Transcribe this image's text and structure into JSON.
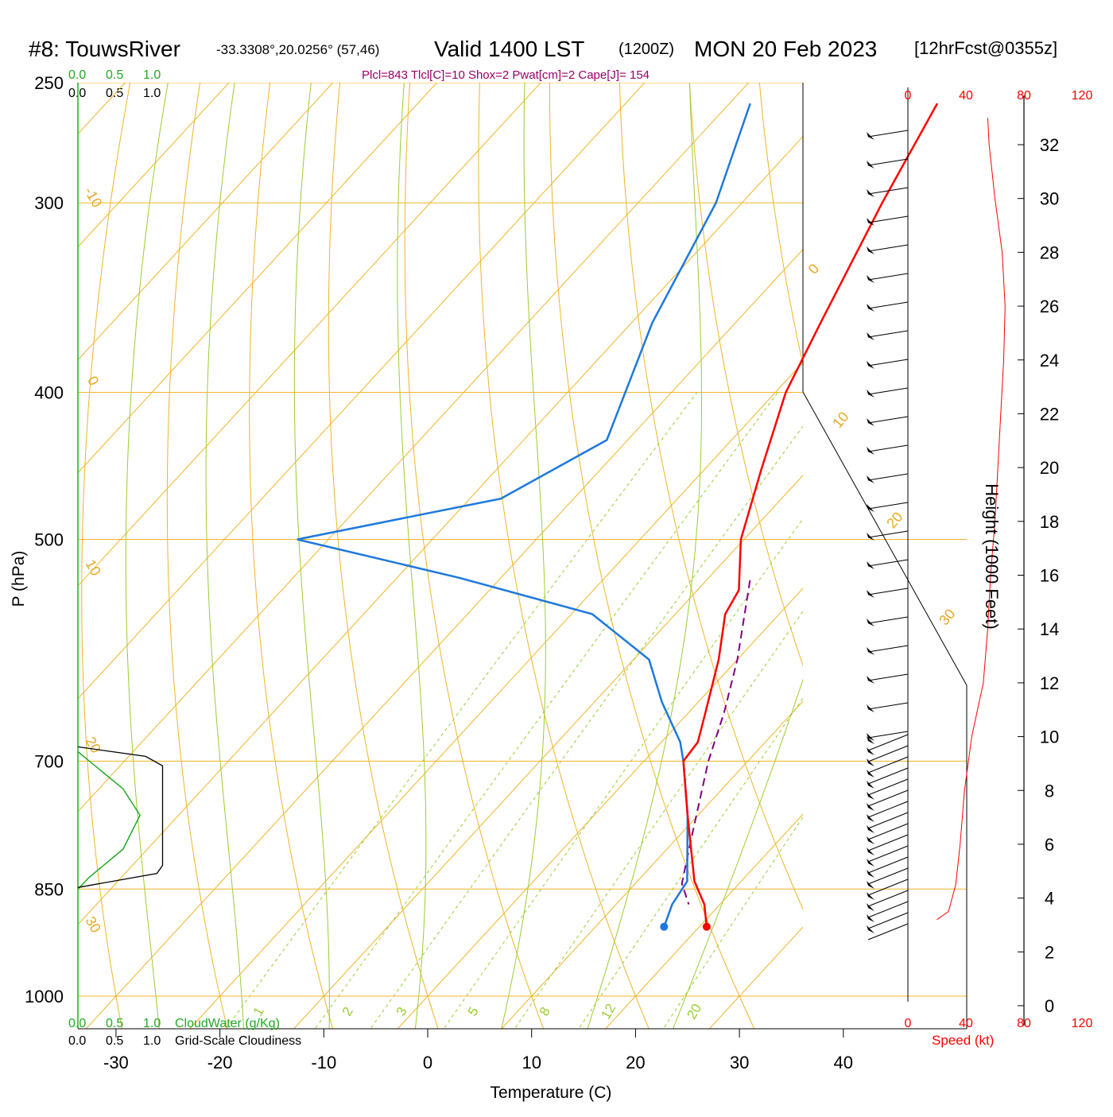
{
  "title": {
    "station": "#8: TouwsRiver",
    "coords": "-33.3308°,20.0256° (57,46)",
    "valid": "Valid 1400 LST",
    "zulu": "(1200Z)",
    "date": "MON 20 Feb 2023",
    "forecast": "[12hrFcst@0355z]"
  },
  "params_line": "Plcl=843 Tlcl[C]=10 Shox=2 Pwat[cm]=2 Cape[J]= 154",
  "top_scales": {
    "green": [
      "0.0",
      "0.5",
      "1.0"
    ],
    "black": [
      "0.0",
      "0.5",
      "1.0"
    ]
  },
  "bottom_scales": {
    "green": [
      "0.0",
      "0.5",
      "1.0"
    ],
    "green_label": "CloudWater (g/Kg)",
    "black": [
      "0.0",
      "0.5",
      "1.0"
    ],
    "black_label": "Grid-Scale Cloudiness"
  },
  "colors": {
    "temperature": "#ff0000",
    "dewpoint": "#1e78dc",
    "parcel": "#800080",
    "isotherm": "#f0b428",
    "dry_adiabat": "#f0b428",
    "moist_adiabat": "#9acd32",
    "mixing_ratio": "#9acd32",
    "cloudwater": "#22aa22",
    "cloudiness": "#000000",
    "wind_speed": "#ff0000"
  },
  "chart_data": {
    "type": "line",
    "diagram": "skew-T log-P",
    "x_label": "Temperature (C)",
    "y_label": "P (hPa)",
    "x_ticks": [
      -30,
      -20,
      -10,
      0,
      10,
      20,
      30,
      40
    ],
    "y_ticks": [
      250,
      300,
      400,
      500,
      700,
      850,
      1000
    ],
    "y_scale": "log",
    "temperature_profile": [
      {
        "p": 258,
        "t": -30.0
      },
      {
        "p": 300,
        "t": -26.5
      },
      {
        "p": 360,
        "t": -21.8
      },
      {
        "p": 400,
        "t": -19.0
      },
      {
        "p": 450,
        "t": -14.5
      },
      {
        "p": 500,
        "t": -10.3
      },
      {
        "p": 540,
        "t": -6.0
      },
      {
        "p": 560,
        "t": -5.2
      },
      {
        "p": 600,
        "t": -1.8
      },
      {
        "p": 650,
        "t": 1.6
      },
      {
        "p": 680,
        "t": 3.5
      },
      {
        "p": 700,
        "t": 3.8
      },
      {
        "p": 760,
        "t": 9.0
      },
      {
        "p": 840,
        "t": 15.5
      },
      {
        "p": 870,
        "t": 18.5
      },
      {
        "p": 900,
        "t": 20.7
      }
    ],
    "dewpoint_profile": [
      {
        "p": 258,
        "t": -48.0
      },
      {
        "p": 300,
        "t": -42.5
      },
      {
        "p": 360,
        "t": -38.0
      },
      {
        "p": 430,
        "t": -32.0
      },
      {
        "p": 470,
        "t": -37.0
      },
      {
        "p": 500,
        "t": -53.0
      },
      {
        "p": 530,
        "t": -34.0
      },
      {
        "p": 560,
        "t": -18.0
      },
      {
        "p": 600,
        "t": -8.5
      },
      {
        "p": 640,
        "t": -3.5
      },
      {
        "p": 680,
        "t": 1.8
      },
      {
        "p": 700,
        "t": 3.8
      },
      {
        "p": 760,
        "t": 9.0
      },
      {
        "p": 840,
        "t": 14.8
      },
      {
        "p": 870,
        "t": 15.4
      },
      {
        "p": 900,
        "t": 16.6
      }
    ],
    "parcel_profile": [
      {
        "p": 532,
        "t": -5.8
      },
      {
        "p": 600,
        "t": 0.0
      },
      {
        "p": 650,
        "t": 3.4
      },
      {
        "p": 700,
        "t": 6.2
      },
      {
        "p": 780,
        "t": 11.0
      },
      {
        "p": 843,
        "t": 14.5
      },
      {
        "p": 870,
        "t": 17.0
      }
    ],
    "surface_point": {
      "p": 900,
      "temperature": 20.7,
      "dewpoint": 16.6
    },
    "isotherm_labels": [
      "-10",
      "0",
      "10",
      "20",
      "30",
      "0",
      "10",
      "20",
      "30"
    ],
    "mixing_ratio_labels": [
      "1",
      "2",
      "3",
      "5",
      "8",
      "12",
      "20"
    ],
    "wind": {
      "speed_axis_label": "Speed (kt)",
      "speed_ticks": [
        "0",
        "40",
        "80",
        "120"
      ],
      "height_axis_label": "Height (1000 Feet)",
      "height_ticks": [
        "0",
        "2",
        "4",
        "6",
        "8",
        "10",
        "12",
        "14",
        "16",
        "18",
        "20",
        "22",
        "24",
        "26",
        "28",
        "30",
        "32"
      ],
      "speed_profile": [
        {
          "h": 3.2,
          "kt": 20
        },
        {
          "h": 3.5,
          "kt": 28
        },
        {
          "h": 4.5,
          "kt": 33
        },
        {
          "h": 6.0,
          "kt": 36
        },
        {
          "h": 8.0,
          "kt": 39
        },
        {
          "h": 10.0,
          "kt": 44
        },
        {
          "h": 12.0,
          "kt": 52
        },
        {
          "h": 14.0,
          "kt": 55
        },
        {
          "h": 16.0,
          "kt": 57
        },
        {
          "h": 18.0,
          "kt": 60
        },
        {
          "h": 20.0,
          "kt": 62
        },
        {
          "h": 22.0,
          "kt": 64
        },
        {
          "h": 24.0,
          "kt": 66
        },
        {
          "h": 26.0,
          "kt": 67
        },
        {
          "h": 28.0,
          "kt": 65
        },
        {
          "h": 30.0,
          "kt": 60
        },
        {
          "h": 32.0,
          "kt": 56
        },
        {
          "h": 33.0,
          "kt": 55
        }
      ]
    },
    "cloud": {
      "cloudwater_profile": [
        {
          "p": 690,
          "v": 0.0
        },
        {
          "p": 730,
          "v": 0.4
        },
        {
          "p": 760,
          "v": 0.55
        },
        {
          "p": 800,
          "v": 0.4
        },
        {
          "p": 835,
          "v": 0.1
        },
        {
          "p": 850,
          "v": 0.0
        }
      ],
      "cloudiness_profile": [
        {
          "p": 685,
          "v": 0.0
        },
        {
          "p": 695,
          "v": 0.6
        },
        {
          "p": 705,
          "v": 0.75
        },
        {
          "p": 820,
          "v": 0.75
        },
        {
          "p": 830,
          "v": 0.7
        },
        {
          "p": 848,
          "v": 0.0
        }
      ]
    }
  }
}
